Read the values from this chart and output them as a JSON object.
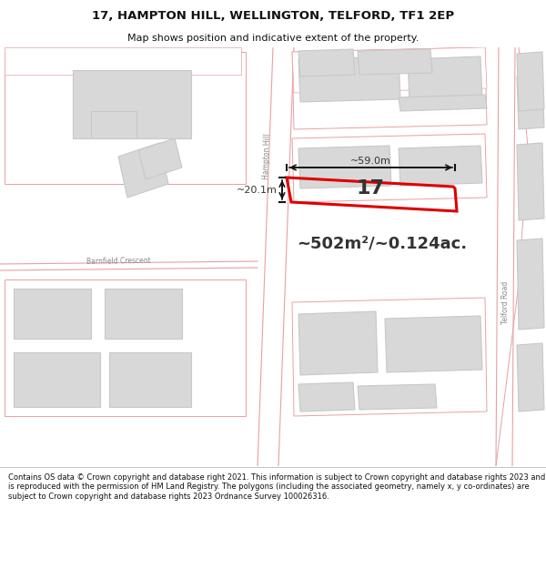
{
  "title_line1": "17, HAMPTON HILL, WELLINGTON, TELFORD, TF1 2EP",
  "title_line2": "Map shows position and indicative extent of the property.",
  "area_text": "~502m²/~0.124ac.",
  "width_label": "~59.0m",
  "height_label": "~20.1m",
  "property_number": "17",
  "footer_text": "Contains OS data © Crown copyright and database right 2021. This information is subject to Crown copyright and database rights 2023 and is reproduced with the permission of HM Land Registry. The polygons (including the associated geometry, namely x, y co-ordinates) are subject to Crown copyright and database rights 2023 Ordnance Survey 100026316.",
  "map_bg": "#ffffff",
  "building_fill": "#d8d8d8",
  "building_edge": "#c8c8c8",
  "plot_fill": "#e8e8e8",
  "plot_edge": "#e8a0a0",
  "highlight_edge": "#dd0000",
  "road_line_color": "#e8a0a0",
  "text_color": "#333333",
  "road_label_color": "#888888",
  "title_fontsize": 9.5,
  "subtitle_fontsize": 8.0,
  "area_fontsize": 13,
  "prop_fontsize": 16,
  "meas_fontsize": 8,
  "footer_fontsize": 6.0
}
